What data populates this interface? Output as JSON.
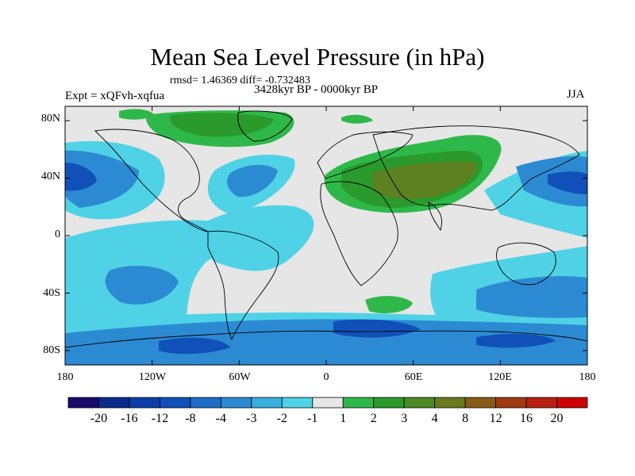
{
  "title": "Mean Sea Level Pressure (in hPa)",
  "stats": "rmsd= 1.46369 diff= -0.732483",
  "period": "3428kyr BP - 0000kyr BP",
  "expt": "Expt = xQFvh-xqfua",
  "season": "JJA",
  "lat_labels": [
    "80N",
    "40N",
    "0",
    "40S",
    "80S"
  ],
  "lon_labels": [
    "180",
    "120W",
    "60W",
    "0",
    "60E",
    "120E",
    "180"
  ],
  "colorbar": {
    "labels": [
      "-20",
      "-16",
      "-12",
      "-8",
      "-4",
      "-3",
      "-2",
      "-1",
      "1",
      "2",
      "3",
      "4",
      "8",
      "12",
      "16",
      "20"
    ],
    "colors": [
      "#1a0a6b",
      "#0a2a8c",
      "#0b3ea8",
      "#1050b8",
      "#1f6cc8",
      "#2c8ad2",
      "#3ab0e0",
      "#4fd2e6",
      "#e6e6e6",
      "#2fb84a",
      "#2a9a2c",
      "#4c8a22",
      "#6a7a1e",
      "#8a5a18",
      "#a03a12",
      "#b81f10",
      "#cc0000"
    ]
  },
  "map_colors": {
    "neutral": "#e6e6e6",
    "light_blue": "#4fd2e6",
    "mid_blue": "#2c8ad2",
    "dark_blue": "#1050b8",
    "green": "#2fb84a",
    "mid_green": "#2a9a2c",
    "olive": "#6a7a1e"
  }
}
